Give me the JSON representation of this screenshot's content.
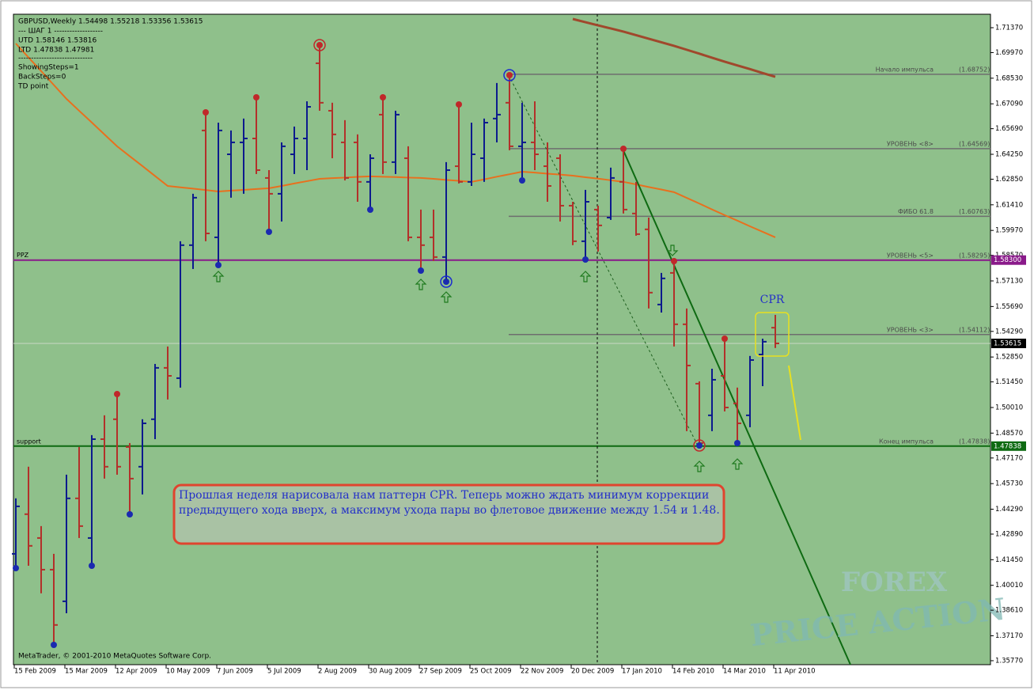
{
  "header": {
    "lines": [
      "GBPUSD,Weekly  1.54498 1.55218 1.53356 1.53615",
      "---   ШАГ 1   -------------------",
      "UTD  1.58146  1.53816",
      "LTD  1.47838  1.47981",
      "-----------------------------",
      "ShowingSteps=1",
      "BackSteps=0",
      "TD point"
    ]
  },
  "footer": "MetaTrader, © 2001-2010 MetaQuotes Software Corp.",
  "annotation": {
    "lines": [
      "Прошлая неделя нарисовала нам паттерн CPR. Теперь можно ждать минимум коррекции",
      "предыдущего хода вверх, а максимум ухода пары во флетовое движение между 1.54 и 1.48."
    ],
    "pattern_label": "CPR"
  },
  "watermark": [
    "FOREX",
    "PRICE ACTION"
  ],
  "chart_data": {
    "type": "ohlc",
    "up_color": "#0c1a8e",
    "down_color": "#b3302a",
    "categories": [
      "15 Feb 2009",
      null,
      null,
      null,
      "15 Mar 2009",
      null,
      null,
      null,
      "12 Apr 2009",
      null,
      null,
      null,
      "10 May 2009",
      null,
      null,
      null,
      "7 Jun 2009",
      null,
      null,
      null,
      "5 Jul 2009",
      null,
      null,
      null,
      "2 Aug 2009",
      null,
      null,
      null,
      "30 Aug 2009",
      null,
      null,
      null,
      "27 Sep 2009",
      null,
      null,
      null,
      "25 Oct 2009",
      null,
      null,
      null,
      "22 Nov 2009",
      null,
      null,
      null,
      "20 Dec 2009",
      null,
      null,
      null,
      "17 Jan 2010",
      null,
      null,
      null,
      "14 Feb 2010",
      null,
      null,
      null,
      "14 Mar 2010",
      null,
      null,
      null,
      "11 Apr 2010"
    ],
    "open": [
      1.4178,
      1.4401,
      1.4267,
      1.4089,
      1.3911,
      1.449,
      1.4267,
      1.4823,
      1.4935,
      1.4779,
      1.4668,
      1.4935,
      1.5224,
      1.5166,
      1.5914,
      1.6559,
      1.5958,
      1.6425,
      1.6492,
      1.6514,
      1.6292,
      1.6203,
      1.6425,
      1.6514,
      1.6937,
      1.667,
      1.6492,
      1.6492,
      1.627,
      1.6648,
      1.6381,
      1.6403,
      1.5958,
      1.5958,
      1.5847,
      1.6358,
      1.627,
      1.6403,
      1.6626,
      1.6715,
      1.647,
      1.6492,
      1.6358,
      1.6403,
      1.6136,
      1.5936,
      1.6114,
      1.6069,
      1.627,
      1.6092,
      1.6003,
      1.558,
      1.5758,
      1.5469,
      1.5135,
      1.4957,
      1.5179,
      1.5024,
      1.4957,
      1.5299,
      1.54498
    ],
    "high": [
      1.449,
      1.4668,
      1.4334,
      1.4178,
      1.4623,
      1.4779,
      1.4846,
      1.4957,
      1.5077,
      1.4801,
      1.4935,
      1.5246,
      1.5344,
      1.5936,
      1.6203,
      1.6661,
      1.6603,
      1.6559,
      1.6626,
      1.6746,
      1.6336,
      1.6492,
      1.6581,
      1.6723,
      1.7039,
      1.6715,
      1.6617,
      1.6537,
      1.6425,
      1.6746,
      1.667,
      1.647,
      1.6114,
      1.6114,
      1.6381,
      1.6706,
      1.6603,
      1.6626,
      1.6826,
      1.687,
      1.6715,
      1.6723,
      1.6492,
      1.6425,
      1.6158,
      1.6225,
      1.6136,
      1.635,
      1.6456,
      1.627,
      1.6069,
      1.5758,
      1.5825,
      1.5558,
      1.5148,
      1.5219,
      1.5388,
      1.5113,
      1.5291,
      1.5388,
      1.55218
    ],
    "low": [
      1.4089,
      1.4111,
      1.3956,
      1.3666,
      1.3844,
      1.4267,
      1.4111,
      1.4601,
      1.4623,
      1.4401,
      1.4512,
      1.4823,
      1.5046,
      1.5113,
      1.578,
      1.5936,
      1.5802,
      1.6181,
      1.6203,
      1.6314,
      1.5989,
      1.6047,
      1.6314,
      1.6336,
      1.667,
      1.6403,
      1.6278,
      1.6158,
      1.6114,
      1.6314,
      1.6314,
      1.5936,
      1.5771,
      1.5825,
      1.5709,
      1.6261,
      1.6247,
      1.627,
      1.6492,
      1.6448,
      1.6278,
      1.6336,
      1.6158,
      1.6047,
      1.5914,
      1.5833,
      1.5878,
      1.6056,
      1.6092,
      1.5967,
      1.5558,
      1.5535,
      1.5344,
      1.4868,
      1.4788,
      1.4868,
      1.4979,
      1.4801,
      1.489,
      1.5121,
      1.53356
    ],
    "close": [
      1.4445,
      1.4223,
      1.4089,
      1.3778,
      1.449,
      1.4334,
      1.4823,
      1.4668,
      1.4668,
      1.4601,
      1.4912,
      1.5224,
      1.5179,
      1.5914,
      1.6181,
      1.598,
      1.6559,
      1.6492,
      1.6514,
      1.6336,
      1.6203,
      1.647,
      1.6514,
      1.6692,
      1.6715,
      1.6537,
      1.6292,
      1.627,
      1.6403,
      1.6381,
      1.6648,
      1.5958,
      1.5914,
      1.5847,
      1.6336,
      1.627,
      1.6425,
      1.6603,
      1.6648,
      1.647,
      1.6492,
      1.6425,
      1.6247,
      1.6136,
      1.5936,
      1.6158,
      1.6025,
      1.6292,
      1.6114,
      1.5976,
      1.5647,
      1.5727,
      1.5469,
      1.5237,
      1.4801,
      1.5157,
      1.5001,
      1.4912,
      1.5268,
      1.5371,
      1.53615
    ],
    "moving_averages": [
      {
        "color": "#e8701e",
        "values": [
          1.7048,
          1.697,
          1.6893,
          1.6815,
          1.6737,
          1.667,
          1.6604,
          1.6537,
          1.647,
          1.6414,
          1.6359,
          1.6303,
          1.6247,
          1.6239,
          1.6232,
          1.6224,
          1.6216,
          1.6221,
          1.6225,
          1.623,
          1.6234,
          1.6247,
          1.6261,
          1.6274,
          1.6287,
          1.6291,
          1.6294,
          1.6298,
          1.6301,
          1.6299,
          1.6297,
          1.6294,
          1.6292,
          1.6287,
          1.6281,
          1.6276,
          1.627,
          1.6284,
          1.6299,
          1.6313,
          1.6327,
          1.6322,
          1.6316,
          1.6311,
          1.6305,
          1.6296,
          1.6288,
          1.6279,
          1.627,
          1.6256,
          1.6241,
          1.6227,
          1.6212,
          1.618,
          1.6148,
          1.6115,
          1.6083,
          1.6052,
          1.602,
          1.5989,
          1.5958
        ]
      },
      {
        "color": "#a0482c",
        "values": [
          null,
          null,
          null,
          null,
          null,
          null,
          null,
          null,
          null,
          null,
          null,
          null,
          null,
          null,
          null,
          null,
          null,
          null,
          null,
          null,
          null,
          null,
          null,
          null,
          null,
          null,
          null,
          null,
          null,
          null,
          null,
          null,
          null,
          null,
          null,
          null,
          null,
          null,
          null,
          null,
          null,
          null,
          null,
          null,
          1.7186,
          1.7168,
          1.715,
          1.7133,
          1.7115,
          1.7095,
          1.7075,
          1.7055,
          1.7035,
          1.7013,
          1.6991,
          1.6968,
          1.6946,
          1.6925,
          1.6904,
          1.6882,
          1.6861
        ]
      }
    ],
    "levels": [
      {
        "name": "Начало импульса",
        "value": 1.68752,
        "value_label": "(1.68752)"
      },
      {
        "name": "УРОВЕНЬ <8>",
        "value": 1.64569,
        "value_label": "(1.64569)"
      },
      {
        "name": "ФИБО 61.8",
        "value": 1.60763,
        "value_label": "(1.60763)"
      },
      {
        "name": "УРОВЕНЬ <5>",
        "value": 1.58295,
        "value_label": "(1.58295)"
      },
      {
        "name": "УРОВЕНЬ <3>",
        "value": 1.54112,
        "value_label": "(1.54112)"
      },
      {
        "name": "Конец импульса",
        "value": 1.47838,
        "value_label": "(1.47838)"
      }
    ],
    "level_color": "#6e6e6e",
    "lines": [
      {
        "name": "PPZ",
        "value": 1.583,
        "value_label": "1.58300",
        "color": "#8a1a8a"
      },
      {
        "name": "support",
        "value": 1.47838,
        "value_label": "1.47838",
        "color": "#0e6a12"
      },
      {
        "value": 1.53615,
        "value_label": "1.53615",
        "color": "#000000"
      }
    ],
    "ylim": [
      1.35546,
      1.72127
    ],
    "yticks": [
      {
        "value": 1.7137,
        "label": "1.71370"
      },
      {
        "value": 1.6997,
        "label": "1.69970"
      },
      {
        "value": 1.6853,
        "label": "1.68530"
      },
      {
        "value": 1.6709,
        "label": "1.67090"
      },
      {
        "value": 1.6569,
        "label": "1.65690"
      },
      {
        "value": 1.6425,
        "label": "1.64250"
      },
      {
        "value": 1.6285,
        "label": "1.62850"
      },
      {
        "value": 1.6141,
        "label": "1.61410"
      },
      {
        "value": 1.5997,
        "label": "1.59970"
      },
      {
        "value": 1.5857,
        "label": "1.58570"
      },
      {
        "value": 1.5713,
        "label": "1.57130"
      },
      {
        "value": 1.5569,
        "label": "1.55690"
      },
      {
        "value": 1.5429,
        "label": "1.54290"
      },
      {
        "value": 1.5285,
        "label": "1.52850"
      },
      {
        "value": 1.5145,
        "label": "1.51450"
      },
      {
        "value": 1.5001,
        "label": "1.50010"
      },
      {
        "value": 1.4857,
        "label": "1.48570"
      },
      {
        "value": 1.4717,
        "label": "1.47170"
      },
      {
        "value": 1.4573,
        "label": "1.45730"
      },
      {
        "value": 1.4429,
        "label": "1.44290"
      },
      {
        "value": 1.4289,
        "label": "1.42890"
      },
      {
        "value": 1.4145,
        "label": "1.41450"
      },
      {
        "value": 1.4001,
        "label": "1.40010"
      },
      {
        "value": 1.3861,
        "label": "1.38610"
      },
      {
        "value": 1.3717,
        "label": "1.37170"
      },
      {
        "value": 1.3577,
        "label": "1.35770"
      }
    ]
  }
}
